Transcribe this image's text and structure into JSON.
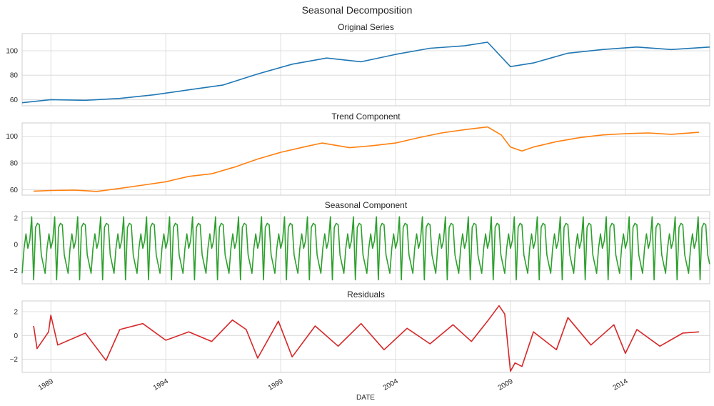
{
  "figure": {
    "title": "Seasonal Decomposition",
    "xlabel": "DATE",
    "x_tick_labels": [
      "1989",
      "1994",
      "1999",
      "2004",
      "2009",
      "2014"
    ],
    "x_range": [
      1987.75,
      2017.67
    ]
  },
  "chart_data": [
    {
      "type": "line",
      "title": "Original Series",
      "color": "#1f77b4",
      "ylim": [
        55,
        114
      ],
      "yticks": [
        60,
        80,
        100
      ],
      "grid": true,
      "x": [
        1987.75,
        1989.0,
        1990.5,
        1992.0,
        1993.5,
        1995.0,
        1996.5,
        1998.0,
        1999.5,
        2001.0,
        2002.5,
        2004.0,
        2005.5,
        2007.0,
        2008.0,
        2009.0,
        2010.0,
        2011.5,
        2013.0,
        2014.5,
        2016.0,
        2017.67
      ],
      "values": [
        57.5,
        60.0,
        59.5,
        61.0,
        64.0,
        68.0,
        72.0,
        81.0,
        89.0,
        94.0,
        91.0,
        97.0,
        102.0,
        104.0,
        107.0,
        87.0,
        90.0,
        98.0,
        101.0,
        103.0,
        101.0,
        103.0
      ]
    },
    {
      "type": "line",
      "title": "Trend Component",
      "color": "#ff7f0e",
      "ylim": [
        56,
        110
      ],
      "yticks": [
        60,
        80,
        100
      ],
      "grid": true,
      "x": [
        1988.25,
        1989.0,
        1990.0,
        1991.0,
        1992.0,
        1993.0,
        1994.0,
        1995.0,
        1996.0,
        1997.0,
        1998.0,
        1999.0,
        2000.0,
        2000.8,
        2002.0,
        2003.0,
        2004.0,
        2005.0,
        2006.0,
        2007.0,
        2008.0,
        2008.6,
        2009.0,
        2009.5,
        2010.0,
        2011.0,
        2012.0,
        2013.0,
        2014.0,
        2015.0,
        2016.0,
        2017.2
      ],
      "values": [
        59.0,
        59.5,
        59.8,
        58.8,
        61.0,
        63.5,
        66.0,
        70.0,
        72.0,
        77.0,
        83.0,
        88.0,
        92.0,
        95.0,
        91.5,
        93.0,
        95.0,
        99.0,
        102.5,
        105.0,
        107.0,
        101.0,
        92.0,
        89.0,
        92.0,
        96.0,
        99.0,
        101.0,
        102.0,
        102.5,
        101.5,
        103.0
      ]
    },
    {
      "type": "line",
      "title": "Seasonal Component",
      "color": "#2ca02c",
      "ylim": [
        -3.0,
        2.5
      ],
      "yticks": [
        -2,
        0,
        2
      ],
      "grid": true,
      "period": 12,
      "start": 1987.75,
      "end": 2017.67,
      "pattern": [
        -2.2,
        -0.3,
        0.8,
        -0.3,
        0.3,
        2.1,
        -2.7,
        1.3,
        1.6,
        1.5,
        -0.8,
        -1.5
      ]
    },
    {
      "type": "line",
      "title": "Residuals",
      "color": "#d62728",
      "ylim": [
        -3.1,
        2.9
      ],
      "yticks": [
        -2,
        0,
        2
      ],
      "grid": true,
      "x": [
        1988.25,
        1988.4,
        1988.9,
        1989.0,
        1989.3,
        1990.5,
        1991.4,
        1992.0,
        1993.0,
        1994.0,
        1995.0,
        1996.0,
        1996.9,
        1997.5,
        1998.0,
        1998.9,
        1999.5,
        2000.5,
        2001.5,
        2002.5,
        2003.5,
        2004.5,
        2005.5,
        2006.5,
        2007.3,
        2008.0,
        2008.5,
        2008.75,
        2009.0,
        2009.2,
        2009.5,
        2010.0,
        2011.0,
        2011.5,
        2012.5,
        2013.5,
        2014.0,
        2014.5,
        2015.5,
        2016.5,
        2017.2
      ],
      "values": [
        0.8,
        -1.1,
        0.3,
        1.7,
        -0.8,
        0.2,
        -2.1,
        0.5,
        1.0,
        -0.4,
        0.3,
        -0.5,
        1.3,
        0.5,
        -1.9,
        1.2,
        -1.8,
        0.8,
        -0.9,
        1.0,
        -1.2,
        0.6,
        -0.7,
        0.9,
        -0.5,
        1.2,
        2.5,
        1.8,
        -3.0,
        -2.3,
        -2.6,
        0.3,
        -1.2,
        1.5,
        -0.8,
        0.9,
        -1.5,
        0.5,
        -0.9,
        0.2,
        0.3
      ]
    }
  ]
}
